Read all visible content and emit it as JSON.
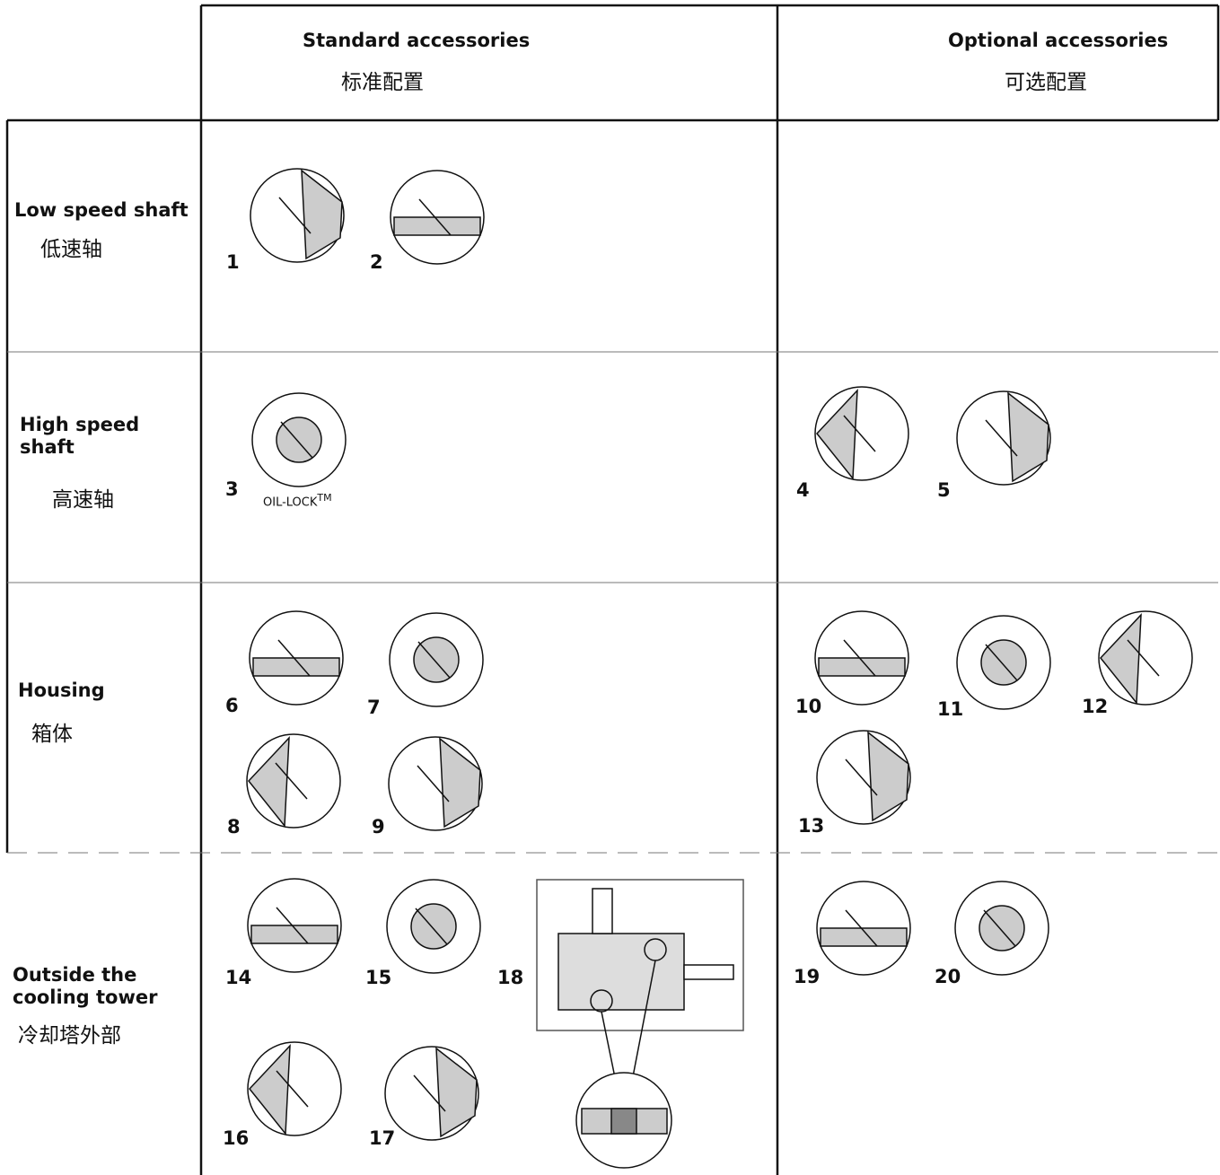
{
  "header": {
    "standard": {
      "en": "Standard accessories",
      "zh": "标准配置"
    },
    "optional": {
      "en": "Optional accessories",
      "zh": "可选配置"
    }
  },
  "rows": [
    {
      "en": "Low speed shaft",
      "zh": "低速轴",
      "standard": [
        {
          "number": "1"
        },
        {
          "number": "2"
        }
      ],
      "optional": []
    },
    {
      "en": "High speed shaft",
      "zh": "高速轴",
      "standard": [
        {
          "number": "3",
          "caption": "OIL-LOCK",
          "superscript": "TM"
        }
      ],
      "optional": [
        {
          "number": "4"
        },
        {
          "number": "5"
        }
      ]
    },
    {
      "en": "Housing",
      "zh": "箱体",
      "standard": [
        {
          "number": "6"
        },
        {
          "number": "7"
        },
        {
          "number": "8"
        },
        {
          "number": "9"
        }
      ],
      "optional": [
        {
          "number": "10"
        },
        {
          "number": "11"
        },
        {
          "number": "12"
        },
        {
          "number": "13"
        }
      ]
    },
    {
      "en": "Outside the cooling tower",
      "zh": "冷却塔外部",
      "standard": [
        {
          "number": "14"
        },
        {
          "number": "15"
        },
        {
          "number": "16"
        },
        {
          "number": "17"
        },
        {
          "number": "18"
        }
      ],
      "optional": [
        {
          "number": "19"
        },
        {
          "number": "20"
        }
      ]
    }
  ]
}
